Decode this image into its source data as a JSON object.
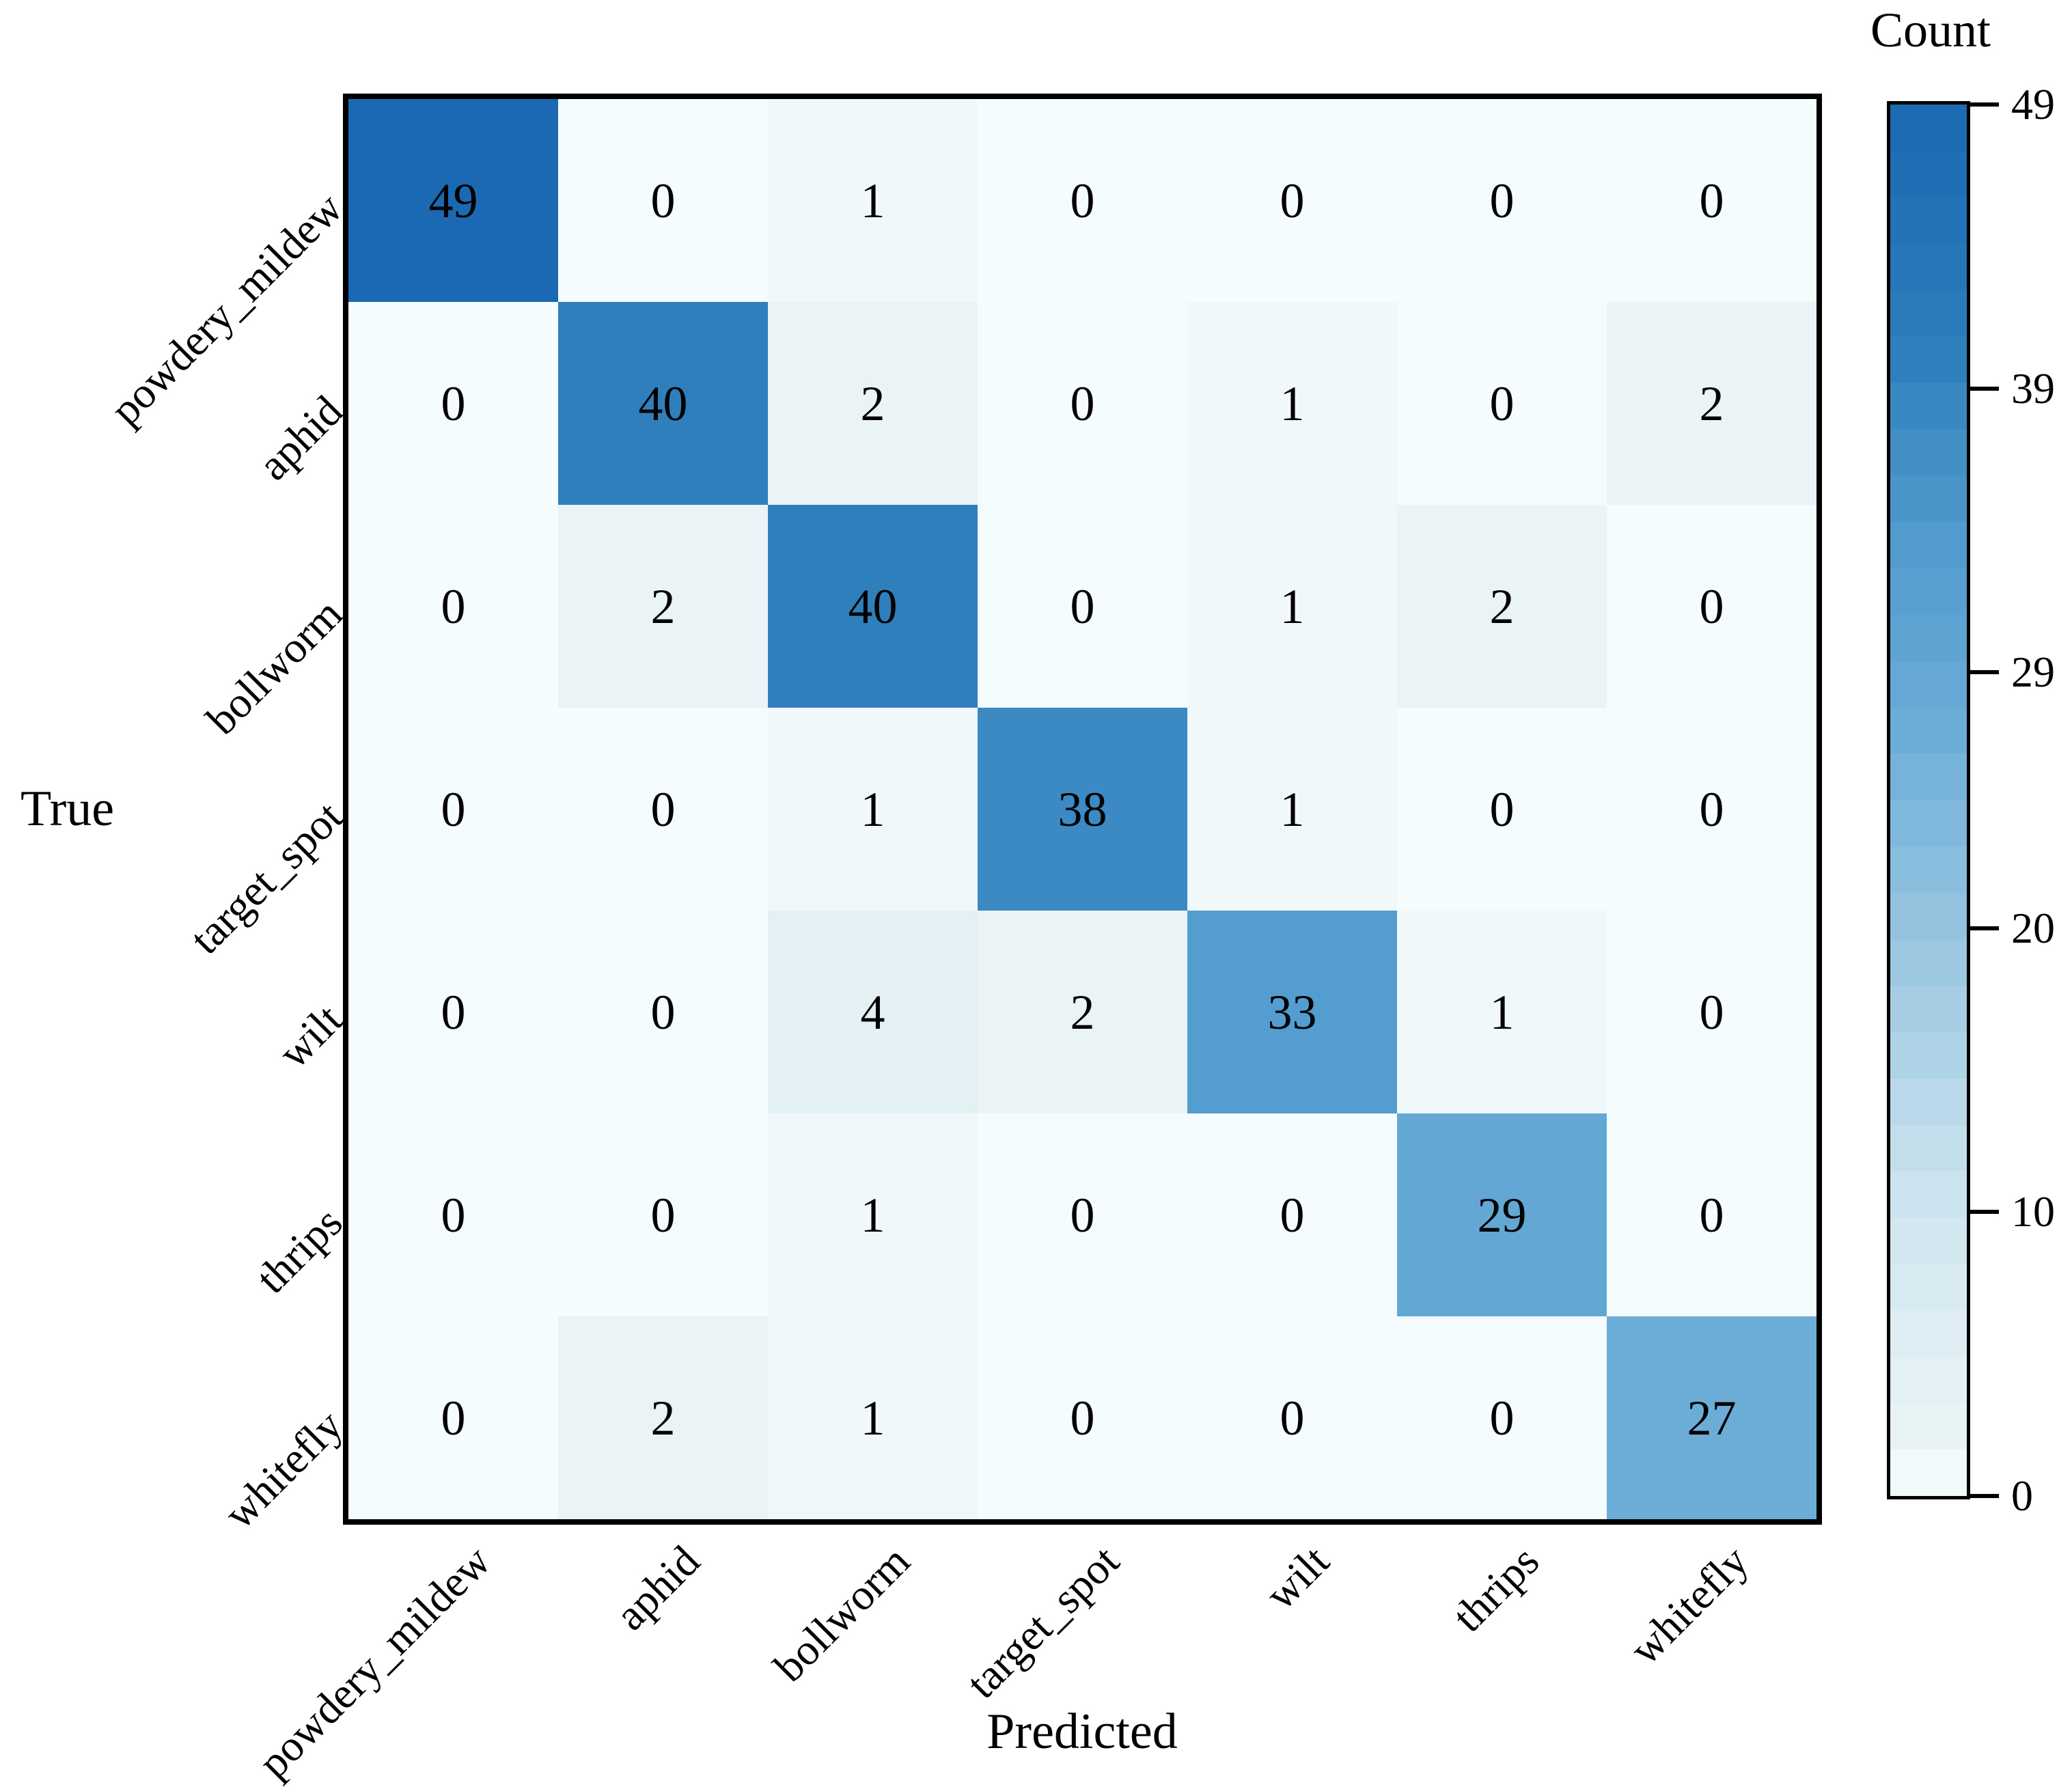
{
  "figure": {
    "background": "#ffffff"
  },
  "chart_data": {
    "type": "heatmap",
    "subtype": "confusion-matrix",
    "xlabel": "Predicted",
    "ylabel": "True",
    "categories": [
      "powdery_mildew",
      "aphid",
      "bollworm",
      "target_spot",
      "wilt",
      "thrips",
      "whitefly"
    ],
    "matrix": [
      [
        49,
        0,
        1,
        0,
        0,
        0,
        0
      ],
      [
        0,
        40,
        2,
        0,
        1,
        0,
        2
      ],
      [
        0,
        2,
        40,
        0,
        1,
        2,
        0
      ],
      [
        0,
        0,
        1,
        38,
        1,
        0,
        0
      ],
      [
        0,
        0,
        4,
        2,
        33,
        1,
        0
      ],
      [
        0,
        0,
        1,
        0,
        0,
        29,
        0
      ],
      [
        0,
        2,
        1,
        0,
        0,
        0,
        27
      ]
    ],
    "vmin": 0,
    "vmax": 49,
    "grid": false,
    "legend_position": "right",
    "colorbar": {
      "title": "Count",
      "ticks": [
        49,
        39,
        29,
        20,
        10,
        0
      ]
    },
    "colormap_stops": [
      [
        0.0,
        "#f5fcfe"
      ],
      [
        0.02,
        "#f0f8fa"
      ],
      [
        0.041,
        "#eaf4f6"
      ],
      [
        0.082,
        "#e3f0f4"
      ],
      [
        0.2,
        "#d0e6ef"
      ],
      [
        0.41,
        "#95c3df"
      ],
      [
        0.551,
        "#6cadd7"
      ],
      [
        0.592,
        "#63a7d5"
      ],
      [
        0.673,
        "#539dd0"
      ],
      [
        0.776,
        "#3c8ac3"
      ],
      [
        0.816,
        "#2f7fbc"
      ],
      [
        1.0,
        "#1a69b2"
      ]
    ],
    "text_color": "#000000"
  }
}
